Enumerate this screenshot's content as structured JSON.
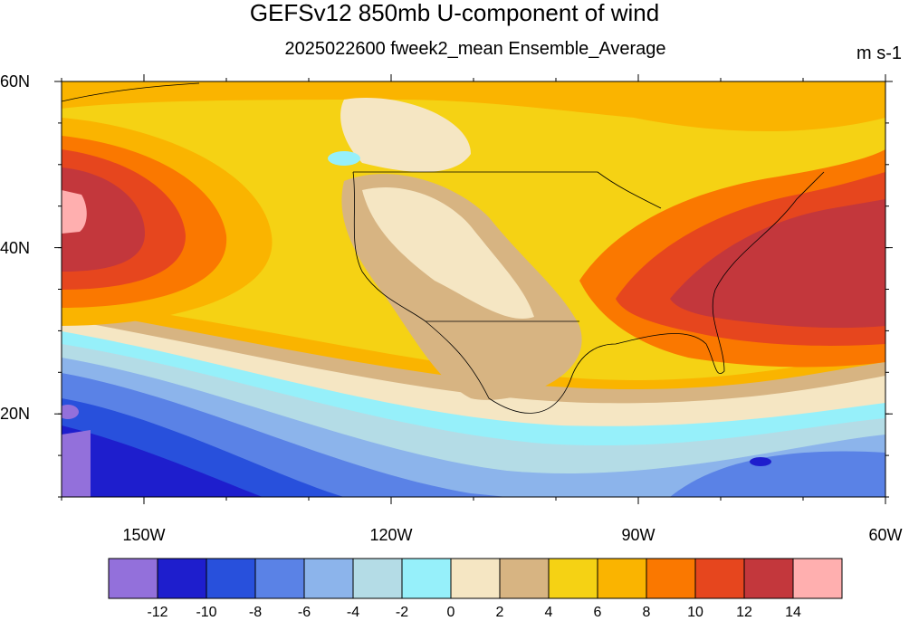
{
  "title": "GEFSv12 850mb U-component of wind",
  "subtitle": "2025022600 fweek2_mean Ensemble_Average",
  "units": "m s-1",
  "map": {
    "lon_range": [
      -160,
      -60
    ],
    "lat_range": [
      10,
      60
    ],
    "lat_ticks": [
      {
        "value": 60,
        "label": "60N"
      },
      {
        "value": 40,
        "label": "40N"
      },
      {
        "value": 20,
        "label": "20N"
      }
    ],
    "lon_ticks": [
      {
        "value": -150,
        "label": "150W"
      },
      {
        "value": -120,
        "label": "120W"
      },
      {
        "value": -90,
        "label": "90W"
      },
      {
        "value": -60,
        "label": "60W"
      }
    ]
  },
  "colorbar": {
    "colors": [
      "#9370DB",
      "#1E1ECD",
      "#2850DC",
      "#5A82E6",
      "#8CB4EB",
      "#B4DCE6",
      "#96F0FA",
      "#F5E6C3",
      "#D7B482",
      "#F5D214",
      "#FAB400",
      "#FA7800",
      "#E6461E",
      "#C3373C",
      "#FFAFAF"
    ],
    "labels": [
      "-12",
      "-10",
      "-8",
      "-6",
      "-4",
      "-2",
      "0",
      "2",
      "4",
      "6",
      "8",
      "10",
      "12",
      "14"
    ]
  }
}
